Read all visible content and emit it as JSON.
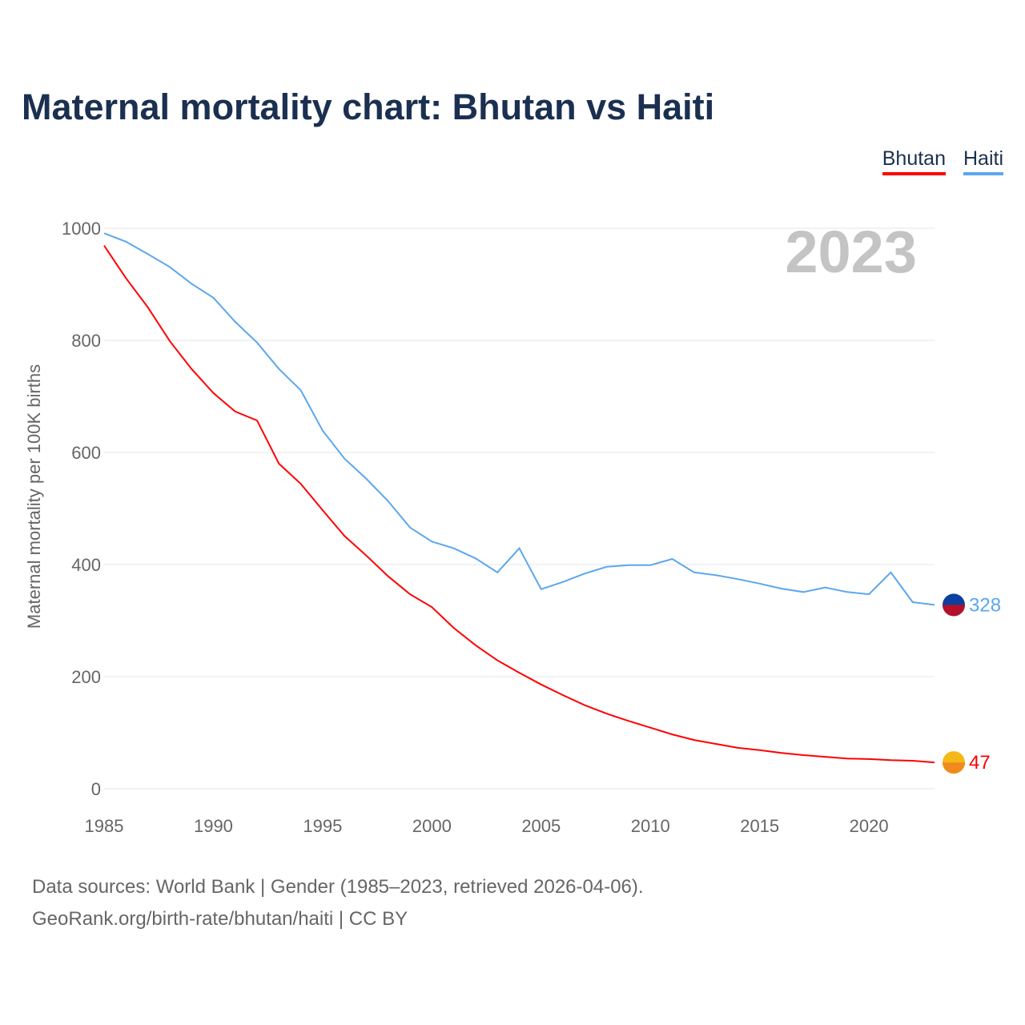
{
  "title": "Maternal mortality chart: Bhutan vs Haiti",
  "year_label": "2023",
  "sources": [
    "Data sources: World Bank | Gender (1985–2023, retrieved 2026-04-06).",
    "GeoRank.org/birth-rate/bhutan/haiti | CC BY"
  ],
  "chart_data": {
    "type": "line",
    "title": "Maternal mortality chart: Bhutan vs Haiti",
    "xlabel": "",
    "ylabel": "Maternal mortality per 100K births",
    "xlim": [
      1985,
      2023
    ],
    "ylim": [
      0,
      1000
    ],
    "xticks": [
      1985,
      1990,
      1995,
      2000,
      2005,
      2010,
      2015,
      2020
    ],
    "yticks": [
      0,
      200,
      400,
      600,
      800,
      1000
    ],
    "grid": true,
    "legend": "top-right",
    "x": [
      1985,
      1986,
      1987,
      1988,
      1989,
      1990,
      1991,
      1992,
      1993,
      1994,
      1995,
      1996,
      1997,
      1998,
      1999,
      2000,
      2001,
      2002,
      2003,
      2004,
      2005,
      2006,
      2007,
      2008,
      2009,
      2010,
      2011,
      2012,
      2013,
      2014,
      2015,
      2016,
      2017,
      2018,
      2019,
      2020,
      2021,
      2022,
      2023
    ],
    "series": [
      {
        "name": "Bhutan",
        "color": "#ff0000",
        "end_label": "47",
        "values": [
          969,
          911,
          859,
          799,
          749,
          706,
          673,
          657,
          580,
          544,
          497,
          451,
          416,
          379,
          347,
          324,
          287,
          256,
          229,
          207,
          186,
          167,
          149,
          134,
          121,
          109,
          97,
          87,
          80,
          73,
          69,
          64,
          60,
          57,
          54,
          53,
          51,
          50,
          47
        ]
      },
      {
        "name": "Haiti",
        "color": "#5ba7ee",
        "end_label": "328",
        "values": [
          991,
          976,
          954,
          931,
          901,
          876,
          833,
          796,
          749,
          711,
          639,
          589,
          553,
          513,
          466,
          441,
          429,
          411,
          386,
          429,
          356,
          369,
          384,
          396,
          399,
          399,
          410,
          386,
          381,
          374,
          366,
          357,
          351,
          359,
          351,
          347,
          386,
          333,
          328
        ]
      }
    ]
  }
}
